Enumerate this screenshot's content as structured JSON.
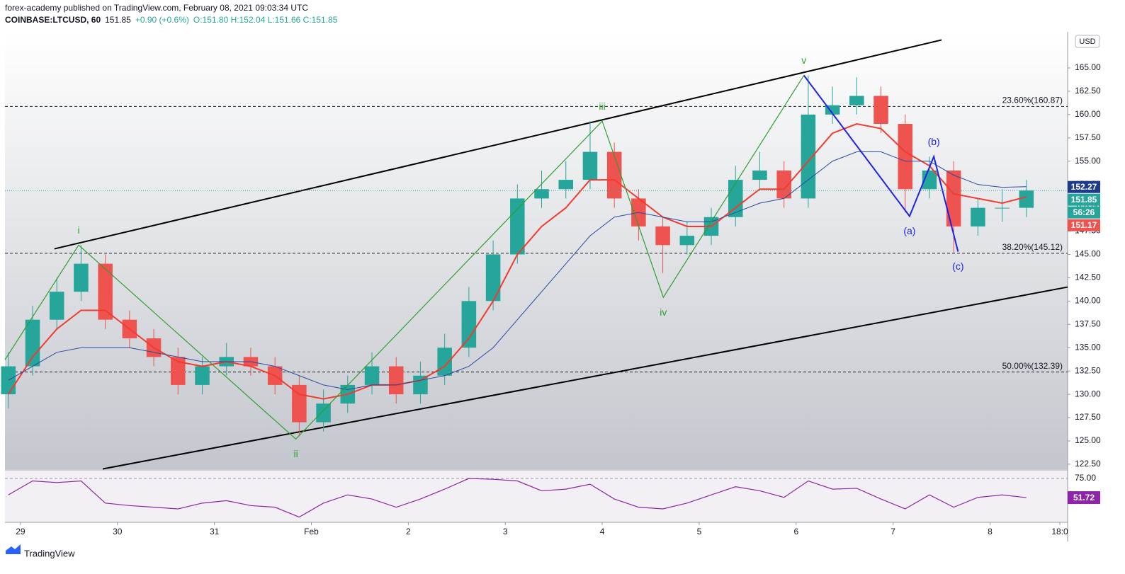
{
  "header": {
    "author_line": "forex-academy published on TradingView.com, February 08, 2021 09:03:34 UTC",
    "symbol": "COINBASE:LTCUSD, 60",
    "last": "151.85",
    "change": "+0.90 (+0.6%)",
    "ohlc": "O:151.80 H:152.04 L:151.66 C:151.85"
  },
  "footer": {
    "brand": "TradingView"
  },
  "chart_data": {
    "type": "candlestick",
    "currency": "USD",
    "x": [
      -0.125,
      0.125,
      0.375,
      0.625,
      0.875,
      1.125,
      1.375,
      1.625,
      1.875,
      2.125,
      2.375,
      2.625,
      2.875,
      3.125,
      3.375,
      3.625,
      3.875,
      4.125,
      4.375,
      4.625,
      4.875,
      5.125,
      5.375,
      5.625,
      5.875,
      6.125,
      6.375,
      6.625,
      6.875,
      7.125,
      7.375,
      7.625,
      7.875,
      8.125,
      8.375,
      8.625,
      8.875,
      9.125,
      9.375,
      9.625,
      9.875,
      10.125,
      10.375
    ],
    "open": [
      130,
      133,
      138,
      141,
      144,
      138,
      136,
      134,
      131,
      133,
      134,
      133,
      131,
      127,
      129,
      131,
      133,
      130,
      132,
      135,
      140,
      145,
      151,
      152,
      153,
      156,
      151,
      148,
      146,
      147,
      149,
      153,
      154,
      151,
      160,
      161,
      162,
      159,
      152,
      154,
      148,
      150,
      150
    ],
    "high": [
      134.5,
      139.5,
      142.5,
      146,
      145,
      139,
      137,
      135,
      134,
      135.5,
      135,
      134,
      132,
      130.5,
      132,
      134.5,
      134,
      133.5,
      136.5,
      141.5,
      146.5,
      152.5,
      154,
      155,
      159.3,
      157,
      152,
      149,
      148.5,
      150,
      154.5,
      156,
      155,
      164.2,
      163,
      164,
      163,
      160,
      155.5,
      155,
      151,
      152,
      153
    ],
    "low": [
      128.5,
      132,
      137,
      140,
      137,
      135,
      133,
      130,
      130,
      132,
      132,
      130,
      125.5,
      126,
      128,
      130,
      129,
      129,
      131,
      134,
      139,
      144,
      150,
      151,
      152,
      150,
      146.5,
      143,
      145,
      146,
      148,
      152,
      150,
      150,
      159,
      160,
      158,
      149.5,
      151,
      145.2,
      147,
      148.5,
      149
    ],
    "close": [
      133,
      138,
      141,
      144,
      138,
      136,
      134,
      131,
      133,
      134,
      133,
      131,
      127,
      129,
      131,
      133,
      130,
      132,
      135,
      140,
      145,
      151,
      152,
      153,
      156,
      151,
      148,
      146,
      147,
      149,
      153,
      154,
      151,
      160,
      161,
      162,
      159,
      152,
      154,
      148,
      150,
      150,
      151.85
    ],
    "up_color": "#26a69a",
    "down_color": "#ef5350",
    "series": [
      {
        "color": "#f23b2e",
        "values": [
          130,
          134,
          137,
          139,
          139,
          137,
          135,
          133.5,
          133,
          133.5,
          133,
          132,
          130,
          129.5,
          130,
          131,
          131,
          131.5,
          133,
          136,
          140,
          145,
          148,
          150,
          153,
          153,
          151,
          149,
          148,
          148,
          150,
          152,
          152,
          155,
          158,
          159,
          158.5,
          156,
          154.5,
          151.5,
          151,
          150.5,
          151.17
        ]
      },
      {
        "color": "#2a4a9e",
        "values": [
          131.5,
          133,
          134.5,
          135,
          135,
          135,
          134.5,
          134,
          133.5,
          133.5,
          133.5,
          133,
          132,
          131,
          130.5,
          131,
          131,
          131.5,
          132,
          133,
          135,
          138,
          141,
          144,
          147,
          149,
          149.5,
          149,
          148.5,
          148.5,
          149.5,
          150.5,
          151,
          153,
          155,
          156,
          156,
          155,
          155,
          153.5,
          152.5,
          152.2,
          152.27
        ]
      }
    ],
    "xlim": [
      -0.16,
      10.8
    ],
    "ylim": [
      121.96,
      168.87
    ],
    "xticks": [
      {
        "value": 0,
        "label": "29"
      },
      {
        "value": 1,
        "label": "30"
      },
      {
        "value": 2,
        "label": "31"
      },
      {
        "value": 3,
        "label": "Feb"
      },
      {
        "value": 4,
        "label": "2"
      },
      {
        "value": 5,
        "label": "3"
      },
      {
        "value": 6,
        "label": "4"
      },
      {
        "value": 7,
        "label": "5"
      },
      {
        "value": 8,
        "label": "6"
      },
      {
        "value": 9,
        "label": "7"
      },
      {
        "value": 10,
        "label": "8"
      },
      {
        "value": 10.72,
        "label": "18:0"
      }
    ],
    "yticks": [
      {
        "value": 122.5,
        "label": "122.50"
      },
      {
        "value": 125,
        "label": "125.00"
      },
      {
        "value": 127.5,
        "label": "127.50"
      },
      {
        "value": 130,
        "label": "130.00"
      },
      {
        "value": 132.5,
        "label": "132.50"
      },
      {
        "value": 135,
        "label": "135.00"
      },
      {
        "value": 137.5,
        "label": "137.50"
      },
      {
        "value": 140,
        "label": "140.00"
      },
      {
        "value": 142.5,
        "label": "142.50"
      },
      {
        "value": 145,
        "label": "145.00"
      },
      {
        "value": 147.5,
        "label": "147.50"
      },
      {
        "value": 150,
        "label": "150.00"
      },
      {
        "value": 152.5,
        "label": "152.50"
      },
      {
        "value": 155,
        "label": "155.00"
      },
      {
        "value": 157.5,
        "label": "157.50"
      },
      {
        "value": 160,
        "label": "160.00"
      },
      {
        "value": 162.5,
        "label": "162.50"
      },
      {
        "value": 165,
        "label": "165.00"
      }
    ],
    "fib_levels": [
      {
        "value": 160.87,
        "label": "23.60%(160.87)"
      },
      {
        "value": 145.12,
        "label": "38.20%(145.12)"
      },
      {
        "value": 132.39,
        "label": "50.00%(132.39)"
      }
    ],
    "channel": [
      {
        "x": [
          0.35,
          9.5
        ],
        "y": [
          145.6,
          168.0
        ]
      },
      {
        "x": [
          0.85,
          10.8
        ],
        "y": [
          122,
          141.5
        ]
      }
    ],
    "waves": [
      {
        "color": "#2e9e2e",
        "x": [
          -0.16,
          0.6,
          2.84,
          6.0,
          6.63,
          8.08
        ],
        "y": [
          133.7,
          146,
          125.2,
          159.3,
          140.4,
          164.2
        ],
        "labels": [
          null,
          "i",
          "ii",
          "iii",
          "iv",
          "v"
        ]
      },
      {
        "color": "#1e22e6",
        "x": [
          8.08,
          9.17,
          9.42,
          9.67
        ],
        "y": [
          164.2,
          149.1,
          155.5,
          145.3
        ],
        "labels": [
          null,
          "(a)",
          "(b)",
          "(c)"
        ]
      }
    ],
    "price_labels": [
      {
        "value": 152.27,
        "label": "152.27",
        "color": "#1e3a8a"
      },
      {
        "value": 151.85,
        "label": "151.85",
        "color": "#26a69a"
      },
      {
        "label": "56:26",
        "color": "#26a69a"
      },
      {
        "value": 151.17,
        "label": "151.17",
        "color": "#ef5350"
      }
    ],
    "rsi": {
      "color": "#8e24aa",
      "values": [
        55,
        72,
        70,
        72,
        45,
        42,
        40,
        38,
        45,
        48,
        42,
        40,
        28,
        45,
        55,
        50,
        40,
        50,
        62,
        75,
        74,
        72,
        60,
        62,
        68,
        50,
        40,
        38,
        45,
        55,
        65,
        60,
        52,
        72,
        62,
        63,
        50,
        38,
        55,
        40,
        52,
        55,
        51.72
      ],
      "ylim": [
        21.6,
        84.5
      ],
      "yticks": [
        {
          "value": 75,
          "label": "75.00"
        }
      ],
      "last_label": "51.72"
    }
  }
}
